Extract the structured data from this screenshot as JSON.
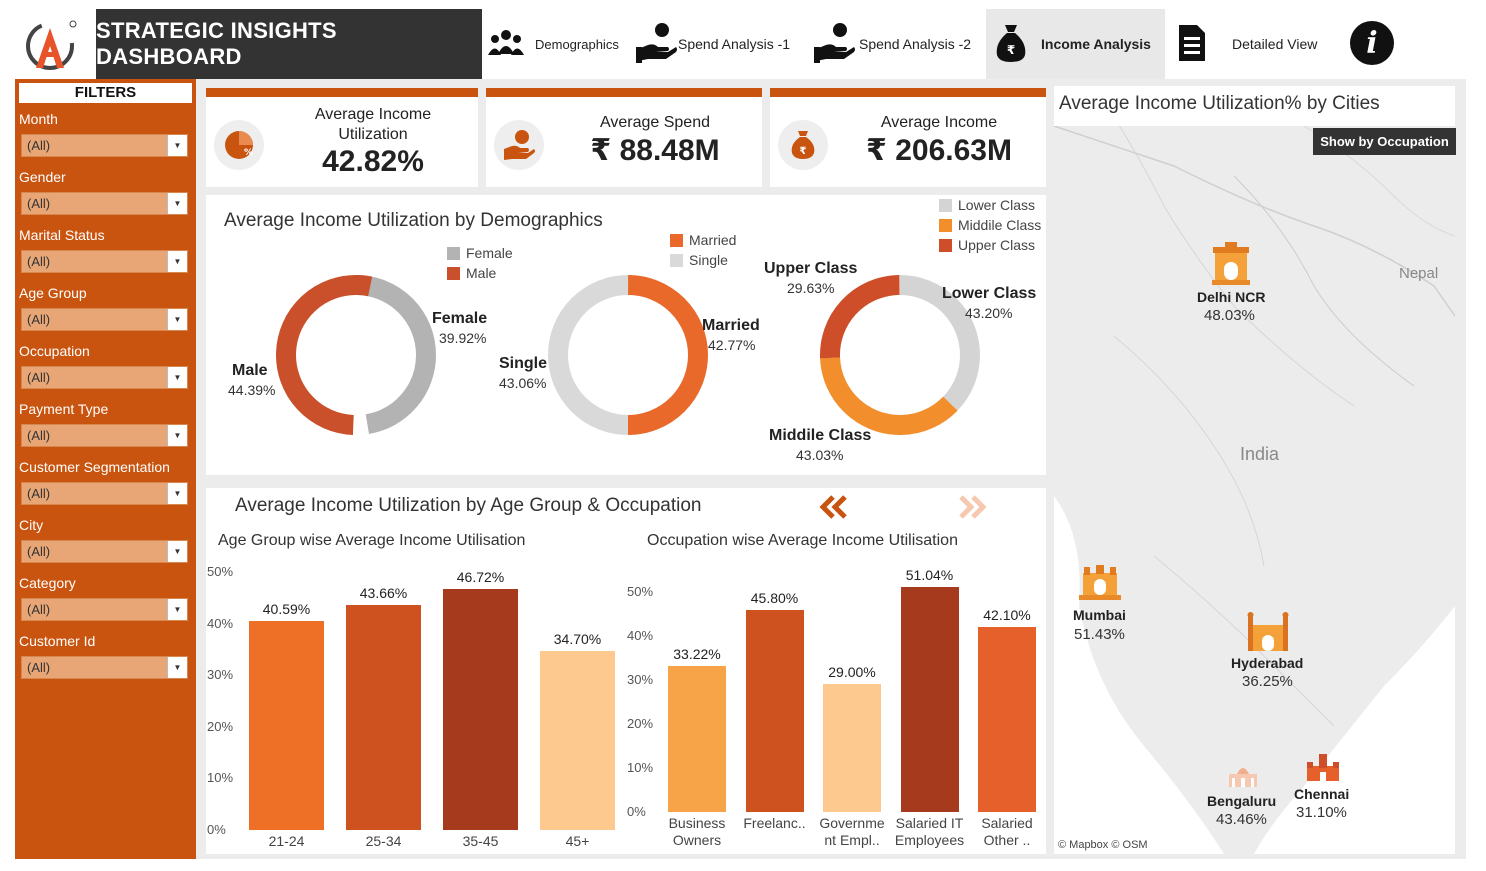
{
  "header": {
    "title": "STRATEGIC INSIGHTS DASHBOARD",
    "nav": [
      {
        "label": "Demographics",
        "icon": "people-icon"
      },
      {
        "label": "Spend Analysis -1",
        "icon": "hand-coin-icon"
      },
      {
        "label": "Spend Analysis -2",
        "icon": "hand-coin-icon"
      },
      {
        "label": "Income Analysis",
        "icon": "money-bag-icon",
        "active": true
      },
      {
        "label": "Detailed View",
        "icon": "document-icon"
      }
    ],
    "info": "i"
  },
  "sidebar": {
    "title": "FILTERS",
    "filters": [
      {
        "label": "Month",
        "value": "(All)"
      },
      {
        "label": "Gender",
        "value": "(All)"
      },
      {
        "label": "Marital Status",
        "value": "(All)"
      },
      {
        "label": "Age Group",
        "value": "(All)"
      },
      {
        "label": "Occupation",
        "value": "(All)"
      },
      {
        "label": "Payment Type",
        "value": "(All)"
      },
      {
        "label": "Customer Segmentation",
        "value": "(All)"
      },
      {
        "label": "City",
        "value": "(All)"
      },
      {
        "label": "Category",
        "value": "(All)"
      },
      {
        "label": "Customer Id",
        "value": "(All)"
      }
    ]
  },
  "kpis": [
    {
      "label_line1": "Average Income",
      "label_line2": "Utilization",
      "value": "42.82%"
    },
    {
      "label_line1": "Average Spend",
      "label_line2": "",
      "value": "₹ 88.48M"
    },
    {
      "label_line1": "Average Income",
      "label_line2": "",
      "value": "₹ 206.63M"
    }
  ],
  "demographics": {
    "title": "Average Income Utilization by Demographics",
    "gender": {
      "legend": [
        "Female",
        "Male"
      ],
      "segments": [
        {
          "name": "Female",
          "value": "39.92%",
          "num": 39.92,
          "color": "#b3b3b3"
        },
        {
          "name": "Male",
          "value": "44.39%",
          "num": 44.39,
          "color": "#c9502a"
        }
      ]
    },
    "marital": {
      "legend": [
        "Married",
        "Single"
      ],
      "segments": [
        {
          "name": "Married",
          "value": "42.77%",
          "num": 42.77,
          "color": "#e8692a"
        },
        {
          "name": "Single",
          "value": "43.06%",
          "num": 43.06,
          "color": "#d9d9d9"
        }
      ]
    },
    "class": {
      "legend": [
        "Lower Class",
        "Middile Class",
        "Upper Class"
      ],
      "segments": [
        {
          "name": "Lower Class",
          "value": "43.20%",
          "num": 43.2,
          "color": "#d4d4d4"
        },
        {
          "name": "Middile Class",
          "value": "43.03%",
          "num": 43.03,
          "color": "#f28e2b"
        },
        {
          "name": "Upper Class",
          "value": "29.63%",
          "num": 29.63,
          "color": "#cf4e2a"
        }
      ]
    }
  },
  "age_occ": {
    "title": "Average Income Utilization by Age Group & Occupation",
    "prev_icon": "double-chevron-left-icon",
    "next_icon": "double-chevron-right-icon"
  },
  "chart_data": [
    {
      "type": "bar",
      "title": "Age Group wise Average Income Utilisation",
      "categories": [
        "21-24",
        "25-34",
        "35-45",
        "45+"
      ],
      "values": [
        40.59,
        43.66,
        46.72,
        34.7
      ],
      "labels": [
        "40.59%",
        "43.66%",
        "46.72%",
        "34.70%"
      ],
      "colors": [
        "#ee7027",
        "#cd5220",
        "#a63a1d",
        "#fdc98f"
      ],
      "ylim": [
        0,
        50
      ],
      "yticks": [
        "0%",
        "10%",
        "20%",
        "30%",
        "40%",
        "50%"
      ],
      "grid": false
    },
    {
      "type": "bar",
      "title": "Occupation wise Average Income Utilisation",
      "categories": [
        "Business Owners",
        "Freelanc..",
        "Governme nt Empl..",
        "Salaried IT Employees",
        "Salaried Other .."
      ],
      "category_lines": [
        [
          "Business",
          "Owners"
        ],
        [
          "Freelanc..",
          ""
        ],
        [
          "Governme",
          "nt Empl.."
        ],
        [
          "Salaried IT",
          "Employees"
        ],
        [
          "Salaried",
          "Other .."
        ]
      ],
      "values": [
        33.22,
        45.8,
        29.0,
        51.04,
        42.1
      ],
      "labels": [
        "33.22%",
        "45.80%",
        "29.00%",
        "51.04%",
        "42.10%"
      ],
      "colors": [
        "#f7a448",
        "#cd5220",
        "#fdc98f",
        "#a63a1d",
        "#e5602a"
      ],
      "ylim": [
        0,
        50
      ],
      "yticks": [
        "0%",
        "10%",
        "20%",
        "30%",
        "40%",
        "50%"
      ],
      "grid": false
    }
  ],
  "map": {
    "title": "Average Income Utilization% by Cities",
    "button": "Show by Occupation",
    "labels": {
      "country": "India",
      "neighbor": "Nepal"
    },
    "credit": "© Mapbox © OSM",
    "cities": [
      {
        "name": "Delhi NCR",
        "value": "48.03%",
        "icon": "india-gate-icon"
      },
      {
        "name": "Mumbai",
        "value": "51.43%",
        "icon": "gateway-of-india-icon"
      },
      {
        "name": "Hyderabad",
        "value": "36.25%",
        "icon": "charminar-icon"
      },
      {
        "name": "Bengaluru",
        "value": "43.46%",
        "icon": "vidhana-soudha-icon"
      },
      {
        "name": "Chennai",
        "value": "31.10%",
        "icon": "central-station-icon"
      }
    ]
  }
}
